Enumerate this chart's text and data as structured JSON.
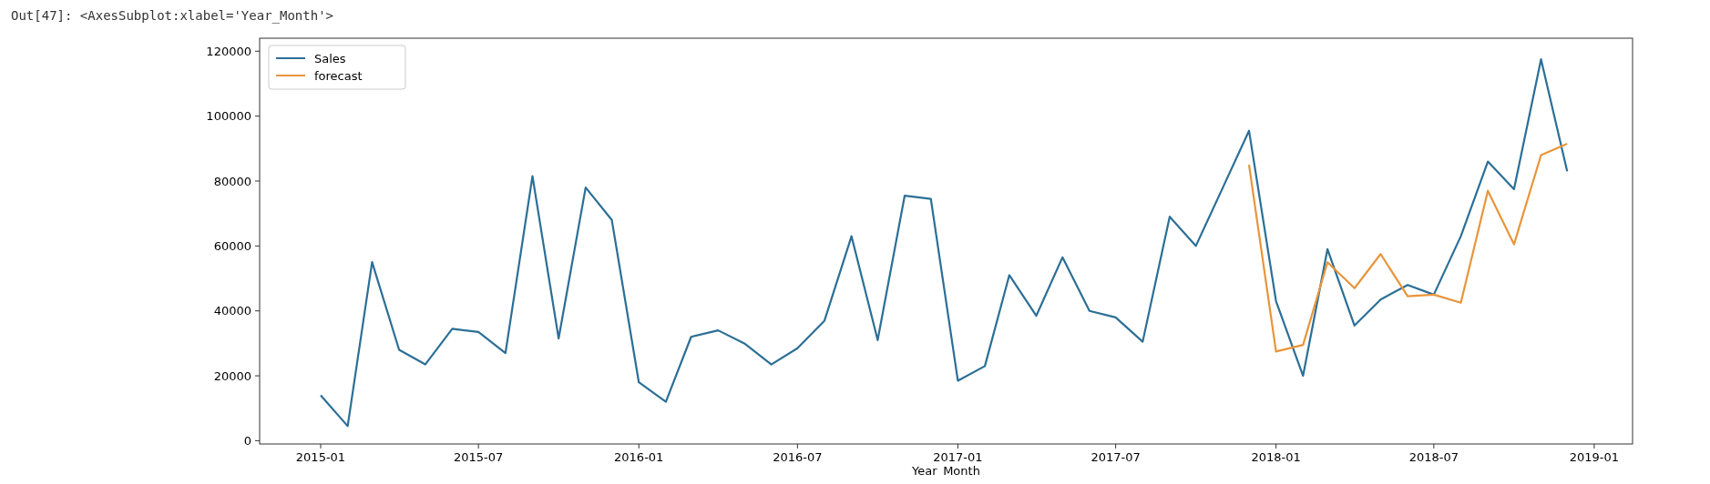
{
  "chart_data": {
    "type": "line",
    "xlabel": "Year_Month",
    "annotations": [
      "Out[47]:  <AxesSubplot:xlabel='Year_Month'>"
    ],
    "x": [
      "2015-01",
      "2015-02",
      "2015-03",
      "2015-04",
      "2015-05",
      "2015-06",
      "2015-07",
      "2015-08",
      "2015-09",
      "2015-10",
      "2015-11",
      "2015-12",
      "2016-01",
      "2016-02",
      "2016-03",
      "2016-04",
      "2016-05",
      "2016-06",
      "2016-07",
      "2016-08",
      "2016-09",
      "2016-10",
      "2016-11",
      "2016-12",
      "2017-01",
      "2017-02",
      "2017-03",
      "2017-04",
      "2017-05",
      "2017-06",
      "2017-07",
      "2017-08",
      "2017-09",
      "2017-10",
      "2017-11",
      "2017-12",
      "2018-01",
      "2018-02",
      "2018-03",
      "2018-04",
      "2018-05",
      "2018-06",
      "2018-07",
      "2018-08",
      "2018-09",
      "2018-10",
      "2018-11",
      "2018-12"
    ],
    "series": [
      {
        "name": "Sales",
        "color": "#2b6f96",
        "values": [
          14000,
          4500,
          55000,
          28000,
          23500,
          34500,
          33500,
          27000,
          81500,
          31500,
          78000,
          68000,
          18000,
          12000,
          32000,
          34000,
          30000,
          23500,
          28500,
          37000,
          63000,
          31000,
          75500,
          74500,
          18500,
          23000,
          51000,
          38500,
          56500,
          40000,
          38000,
          30500,
          69000,
          60000,
          78000,
          95500,
          43000,
          20000,
          59000,
          35500,
          43500,
          48000,
          45000,
          63000,
          86000,
          77500,
          117500,
          83000
        ]
      },
      {
        "name": "forecast",
        "color": "#e8953a",
        "x": [
          "2017-12",
          "2018-01",
          "2018-02",
          "2018-03",
          "2018-04",
          "2018-05",
          "2018-06",
          "2018-07",
          "2018-08",
          "2018-09",
          "2018-10",
          "2018-11",
          "2018-12"
        ],
        "values": [
          85000,
          27500,
          29500,
          55000,
          47000,
          57500,
          44500,
          45000,
          42500,
          77000,
          60500,
          88000,
          91500
        ]
      }
    ],
    "xlim": [
      "2014-10-23",
      "2019-02-14"
    ],
    "xticks": [
      {
        "value": "2015-01",
        "label": "2015-01"
      },
      {
        "value": "2015-07",
        "label": "2015-07"
      },
      {
        "value": "2016-01",
        "label": "2016-01"
      },
      {
        "value": "2016-07",
        "label": "2016-07"
      },
      {
        "value": "2017-01",
        "label": "2017-01"
      },
      {
        "value": "2017-07",
        "label": "2017-07"
      },
      {
        "value": "2018-01",
        "label": "2018-01"
      },
      {
        "value": "2018-07",
        "label": "2018-07"
      },
      {
        "value": "2019-01",
        "label": "2019-01"
      }
    ],
    "ylim": [
      -1000,
      124000
    ],
    "yticks": [
      0,
      20000,
      40000,
      60000,
      80000,
      100000,
      120000
    ],
    "legend": "top left",
    "grid": false,
    "marker": "none",
    "line_style": "solid"
  }
}
